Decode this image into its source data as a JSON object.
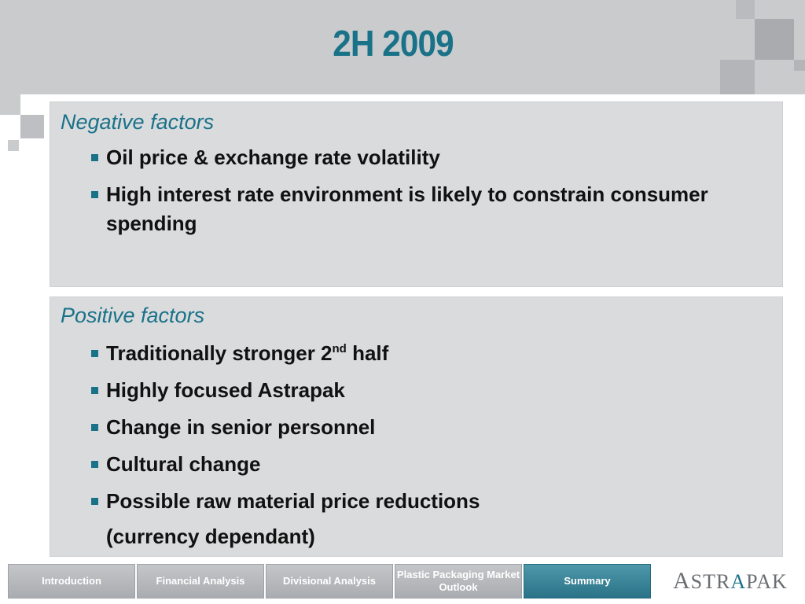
{
  "slide": {
    "title": "2H 2009"
  },
  "negative": {
    "heading": "Negative factors",
    "items": [
      "Oil price & exchange rate volatility",
      "High interest rate environment is likely to constrain consumer spending"
    ]
  },
  "positive": {
    "heading": "Positive factors",
    "item0_pre": "Traditionally stronger 2",
    "item0_sup": "nd",
    "item0_post": " half",
    "items": [
      "Highly focused Astrapak",
      "Change in senior personnel",
      "Cultural change",
      "Possible raw material price reductions"
    ],
    "note": "(currency dependant)"
  },
  "nav": {
    "tabs": [
      {
        "label": "Introduction",
        "active": false
      },
      {
        "label": "Financial Analysis",
        "active": false
      },
      {
        "label": "Divisional Analysis",
        "active": false
      },
      {
        "label": "Plastic Packaging Market Outlook",
        "active": false
      },
      {
        "label": "Summary",
        "active": true
      }
    ]
  },
  "logo": {
    "text": "ASTRAPAK",
    "part1_big": "A",
    "part1": "STR",
    "part2": "A",
    "part3": "PAK"
  },
  "colors": {
    "accent": "#1a7289",
    "panel": "#dadbdd",
    "header": "#c9cbcd"
  }
}
